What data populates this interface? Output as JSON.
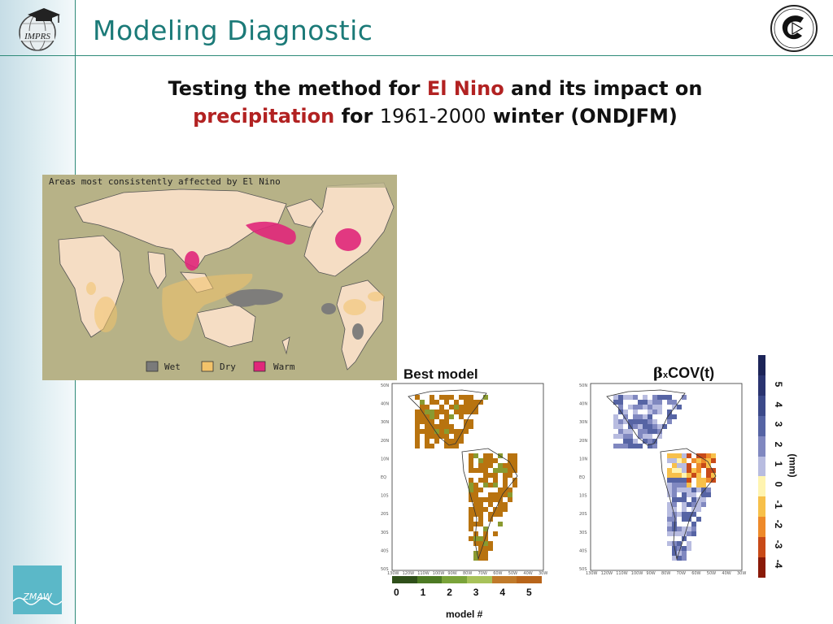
{
  "header": {
    "title": "Modeling Diagnostic",
    "left_logo": {
      "text": "IMPRS",
      "icon": "mortarboard-globe-icon"
    },
    "right_logo": {
      "icon": "institute-emblem-icon"
    }
  },
  "subtitle": {
    "part1": "Testing the method for ",
    "el_nino": "El Nino",
    "part2": " and its impact on",
    "precipitation": "precipitation",
    "part3": " for ",
    "years": "1961-2000",
    "part4": " winter (ONDJFM)"
  },
  "enso_map": {
    "caption": "Areas most consistently affected by El Nino",
    "legend": [
      {
        "label": "Wet",
        "color": "#7a7a7a"
      },
      {
        "label": "Dry",
        "color": "#f2c36a"
      },
      {
        "label": "Warm",
        "color": "#e0267a"
      }
    ]
  },
  "best_model_panel": {
    "label": "Best model",
    "colorbar_ticks": [
      "0",
      "1",
      "2",
      "3",
      "4",
      "5"
    ],
    "colorbar_colors": [
      "#2f4f1a",
      "#4d7a24",
      "#7aa33a",
      "#a8c25a",
      "#c07a2a",
      "#b8651a"
    ],
    "xlabel": "model #",
    "lat_labels": [
      "50N",
      "40N",
      "30N",
      "20N",
      "10N",
      "EQ",
      "10S",
      "20S",
      "30S",
      "40S",
      "50S"
    ],
    "lon_labels": [
      "130W",
      "120W",
      "110W",
      "100W",
      "90W",
      "80W",
      "70W",
      "60W",
      "50W",
      "40W",
      "30W"
    ]
  },
  "cov_panel": {
    "label_beta": "β",
    "label_sub": "x",
    "label_rest": "COV(t)",
    "colorbar_ticks": [
      "5",
      "4",
      "3",
      "2",
      "1",
      "0",
      "-1",
      "-2",
      "-3",
      "-4"
    ],
    "colorbar_colors": [
      "#1c2458",
      "#2a3470",
      "#3c4a8a",
      "#5664a4",
      "#8088c0",
      "#b8bce0",
      "#fff4b0",
      "#f7c04a",
      "#ee8a2a",
      "#c84a18",
      "#8a1a08"
    ],
    "unit": "(mm)",
    "lat_labels": [
      "50N",
      "40N",
      "30N",
      "20N",
      "10N",
      "EQ",
      "10S",
      "20S",
      "30S",
      "40S",
      "50S"
    ],
    "lon_labels": [
      "130W",
      "120W",
      "110W",
      "100W",
      "90W",
      "80W",
      "70W",
      "60W",
      "50W",
      "40W",
      "30W"
    ]
  },
  "footer": {
    "logo_text": "ZMAW"
  }
}
